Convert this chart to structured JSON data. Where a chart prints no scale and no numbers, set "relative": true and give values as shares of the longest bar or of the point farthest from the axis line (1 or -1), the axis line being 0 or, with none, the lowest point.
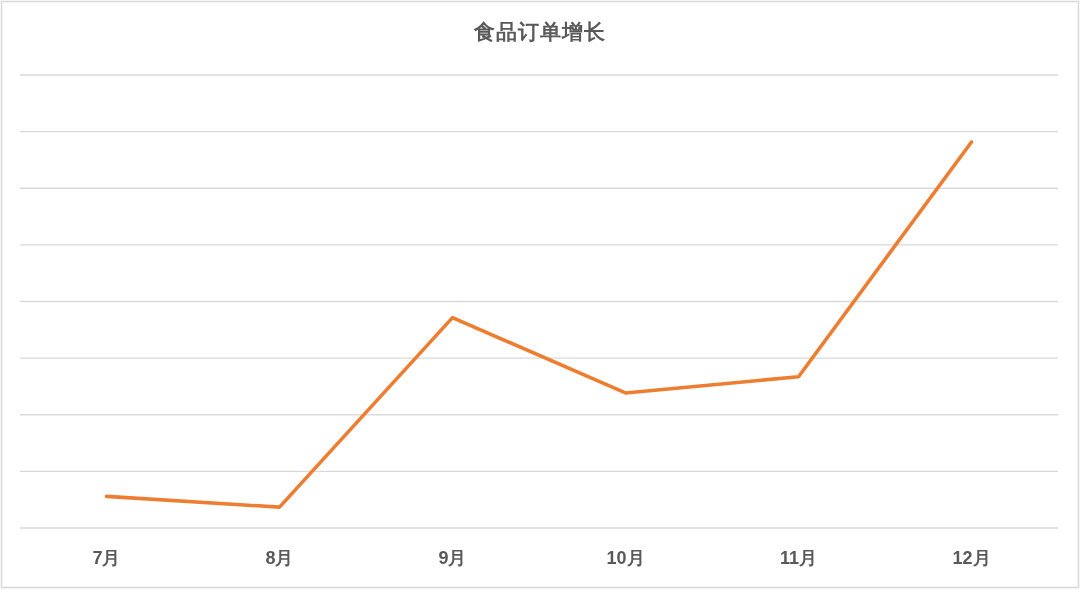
{
  "chart_data": {
    "type": "line",
    "title": "食品订单增长",
    "categories": [
      "7月",
      "8月",
      "9月",
      "10月",
      "11月",
      "12月"
    ],
    "series": [
      {
        "color": "#ed7d31",
        "values": [
          0.082,
          0.054,
          0.545,
          0.35,
          0.392,
          1
        ]
      }
    ],
    "relative": true,
    "grid": "y",
    "line_style": "solid"
  }
}
